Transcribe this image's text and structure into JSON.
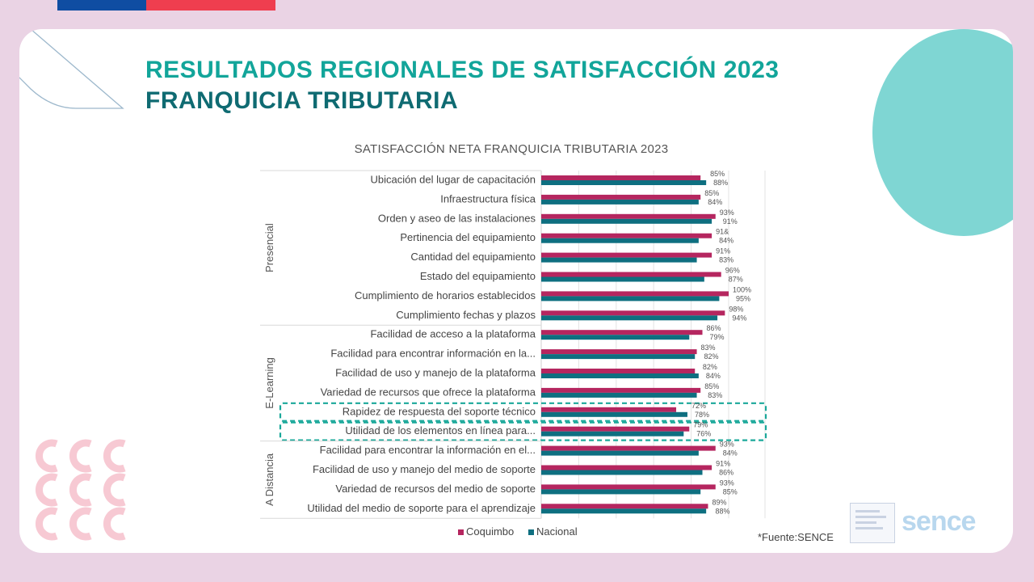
{
  "header": {
    "title_line1": "RESULTADOS REGIONALES DE SATISFACCIÓN 2023",
    "title_line2": "FRANQUICIA TRIBUTARIA"
  },
  "footer": {
    "source": "*Fuente:SENCE",
    "logo_text": "sence"
  },
  "colors": {
    "coquimbo": "#b5265f",
    "nacional": "#0e6f80",
    "title_primary": "#12a59a",
    "title_secondary": "#0f6b72",
    "highlight": "#1aa89a"
  },
  "chart_data": {
    "type": "bar",
    "orientation": "horizontal",
    "title": "SATISFACCIÓN NETA FRANQUICIA TRIBUTARIA 2023",
    "xlim": [
      0,
      100
    ],
    "legend": [
      "Coquimbo",
      "Nacional"
    ],
    "legend_position": "bottom",
    "groups": [
      {
        "name": "Presencial",
        "start": 0,
        "end": 7
      },
      {
        "name": "E-Learning",
        "start": 8,
        "end": 13
      },
      {
        "name": "A Distancia",
        "start": 14,
        "end": 17
      }
    ],
    "highlighted_categories": [
      12,
      13
    ],
    "categories": [
      "Ubicación del lugar de capacitación",
      "Infraestructura física",
      "Orden y aseo de las instalaciones",
      "Pertinencia del equipamiento",
      "Cantidad del equipamiento",
      "Estado del equipamiento",
      "Cumplimiento de horarios establecidos",
      "Cumplimiento fechas y plazos",
      "Facilidad de acceso a la plataforma",
      "Facilidad para encontrar información en la...",
      "Facilidad de uso y manejo de la plataforma",
      "Variedad de recursos que ofrece la plataforma",
      "Rapidez de respuesta del soporte técnico",
      "Utilidad de los elementos en línea para...",
      "Facilidad para encontrar la información en el...",
      "Facilidad de uso y manejo del medio de soporte",
      "Variedad de recursos del medio de soporte",
      "Utilidad del medio de soporte para el aprendizaje"
    ],
    "series": [
      {
        "name": "Coquimbo",
        "values": [
          85,
          85,
          93,
          91,
          91,
          96,
          100,
          98,
          86,
          83,
          82,
          85,
          72,
          79,
          93,
          91,
          93,
          89
        ],
        "labels": [
          "85%",
          "85%",
          "93%",
          "91&",
          "91%",
          "96%",
          "100%",
          "98%",
          "86%",
          "83%",
          "82%",
          "85%",
          "72%",
          "79%",
          "93%",
          "91%",
          "93%",
          "89%"
        ]
      },
      {
        "name": "Nacional",
        "values": [
          88,
          84,
          91,
          84,
          83,
          87,
          95,
          94,
          79,
          82,
          84,
          83,
          78,
          76,
          84,
          86,
          85,
          88
        ],
        "labels": [
          "88%",
          "84%",
          "91%",
          "84%",
          "83%",
          "87%",
          "95%",
          "94%",
          "79%",
          "82%",
          "84%",
          "83%",
          "78%",
          "76%",
          "84%",
          "86%",
          "85%",
          "88%"
        ]
      }
    ]
  }
}
